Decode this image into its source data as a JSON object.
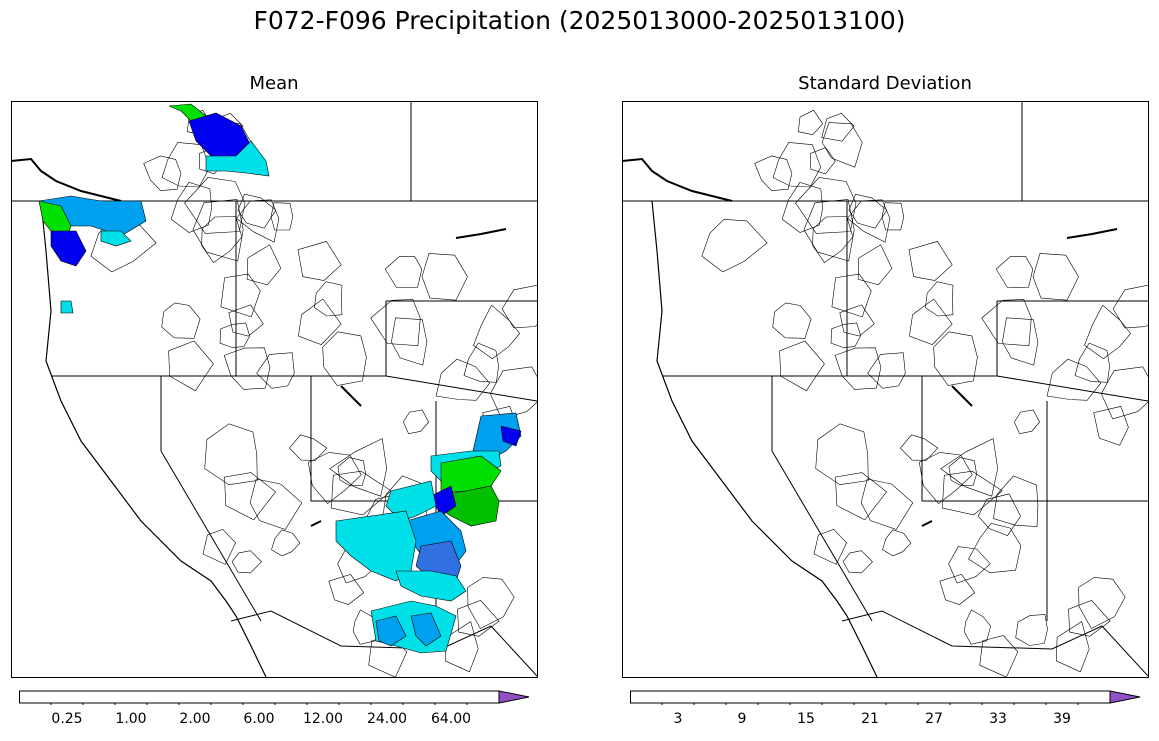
{
  "figure": {
    "title": "F072-F096 Precipitation (2025013000-2025013100)"
  },
  "panels": [
    {
      "subtitle": "Mean",
      "colorbar": {
        "colors": [
          "#ffffff",
          "#00e0e8",
          "#00a0f0",
          "#0000f0",
          "#00f000",
          "#00c000",
          "#008800",
          "#f8f800",
          "#e0b800",
          "#ff8800",
          "#ff0000",
          "#d80000",
          "#b80000",
          "#f000f0",
          "#9050c8"
        ],
        "tick_labels": [
          "0.25",
          "1.00",
          "2.00",
          "6.00",
          "12.00",
          "24.00",
          "64.00"
        ]
      }
    },
    {
      "subtitle": "Standard Deviation",
      "colorbar": {
        "colors": [
          "#ffffff",
          "#00e0e8",
          "#00a0f0",
          "#0000f0",
          "#00f000",
          "#00c000",
          "#008800",
          "#f8f800",
          "#e0b800",
          "#ff8800",
          "#ff0000",
          "#d80000",
          "#b80000",
          "#f000f0",
          "#9050c8"
        ],
        "tick_labels": [
          "3",
          "9",
          "15",
          "21",
          "27",
          "33",
          "39"
        ]
      }
    }
  ]
}
